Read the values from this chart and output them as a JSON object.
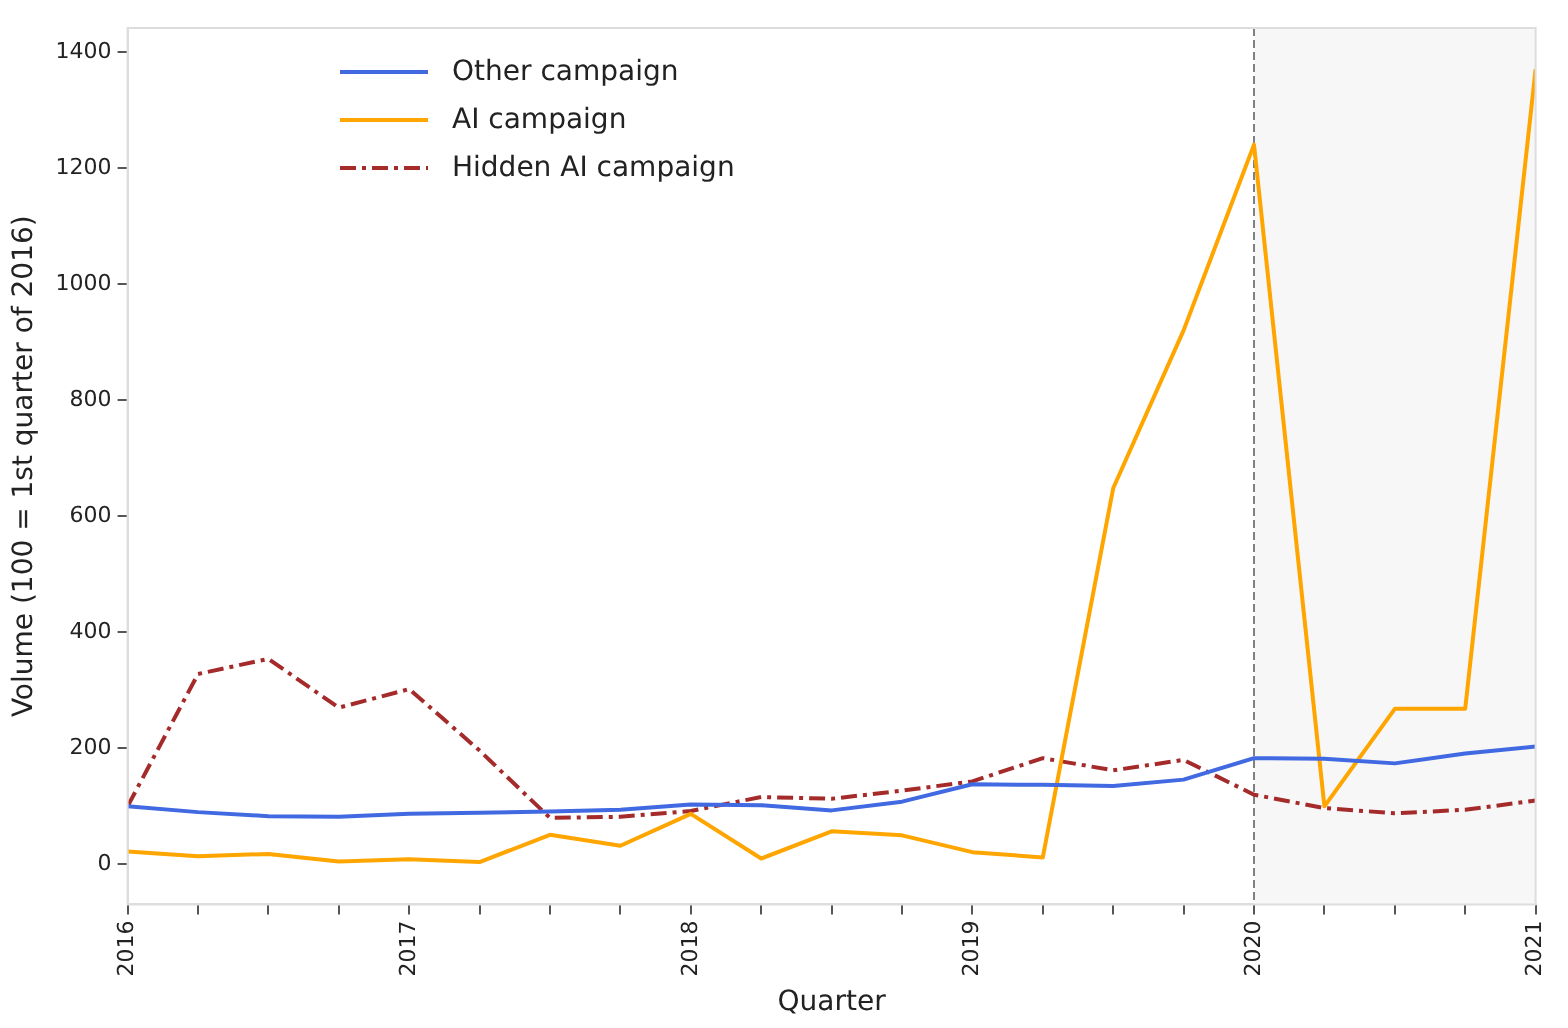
{
  "chart_data": {
    "type": "line",
    "xlabel": "Quarter",
    "ylabel": "Volume (100 = 1st quarter of 2016)",
    "x": [
      2016,
      2016.25,
      2016.5,
      2016.75,
      2017,
      2017.25,
      2017.5,
      2017.75,
      2018,
      2018.25,
      2018.5,
      2018.75,
      2019,
      2019.25,
      2019.5,
      2019.75,
      2020,
      2020.25,
      2020.5,
      2020.75,
      2021
    ],
    "series": [
      {
        "name": "Other campaign",
        "color": "#4169e1",
        "line_style": "solid",
        "values": [
          100,
          90,
          83,
          82,
          87,
          89,
          91,
          94,
          103,
          102,
          93,
          108,
          138,
          137,
          135,
          146,
          183,
          182,
          174,
          191,
          203
        ]
      },
      {
        "name": "AI campaign",
        "color": "#ffa500",
        "line_style": "solid",
        "values": [
          22,
          14,
          18,
          5,
          9,
          4,
          51,
          32,
          87,
          10,
          57,
          50,
          21,
          12,
          648,
          920,
          1240,
          100,
          268,
          268,
          1370
        ]
      },
      {
        "name": "Hidden AI campaign",
        "color": "#a52a2a",
        "line_style": "dashed",
        "values": [
          100,
          328,
          354,
          270,
          302,
          196,
          80,
          82,
          92,
          116,
          113,
          127,
          143,
          183,
          162,
          180,
          120,
          97,
          88,
          94,
          110
        ]
      }
    ],
    "xlim": [
      2016,
      2021
    ],
    "xticks": [
      2016,
      {
        "value": 2016.25,
        "label": null
      },
      {
        "value": 2016.5,
        "label": null
      },
      {
        "value": 2016.75,
        "label": null
      },
      2017,
      {
        "value": 2017.25,
        "label": null
      },
      {
        "value": 2017.5,
        "label": null
      },
      {
        "value": 2017.75,
        "label": null
      },
      2018,
      {
        "value": 2018.25,
        "label": null
      },
      {
        "value": 2018.5,
        "label": null
      },
      {
        "value": 2018.75,
        "label": null
      },
      2019,
      {
        "value": 2019.25,
        "label": null
      },
      {
        "value": 2019.5,
        "label": null
      },
      {
        "value": 2019.75,
        "label": null
      },
      2020,
      {
        "value": 2020.25,
        "label": null
      },
      {
        "value": 2020.5,
        "label": null
      },
      {
        "value": 2020.75,
        "label": null
      },
      2021
    ],
    "ylim": [
      -69,
      1441
    ],
    "yticks": [
      0,
      200,
      400,
      600,
      800,
      1000,
      1200,
      1400
    ],
    "ref_lines": [
      {
        "axis": "x",
        "value": 2020,
        "color": "#808080",
        "line_style": "dashed"
      }
    ],
    "bands": [
      {
        "axis": "x",
        "from": 2020,
        "to": 2021,
        "color": "#f7f7f7"
      }
    ],
    "grid": false,
    "legend": "top left",
    "marker": "none"
  }
}
